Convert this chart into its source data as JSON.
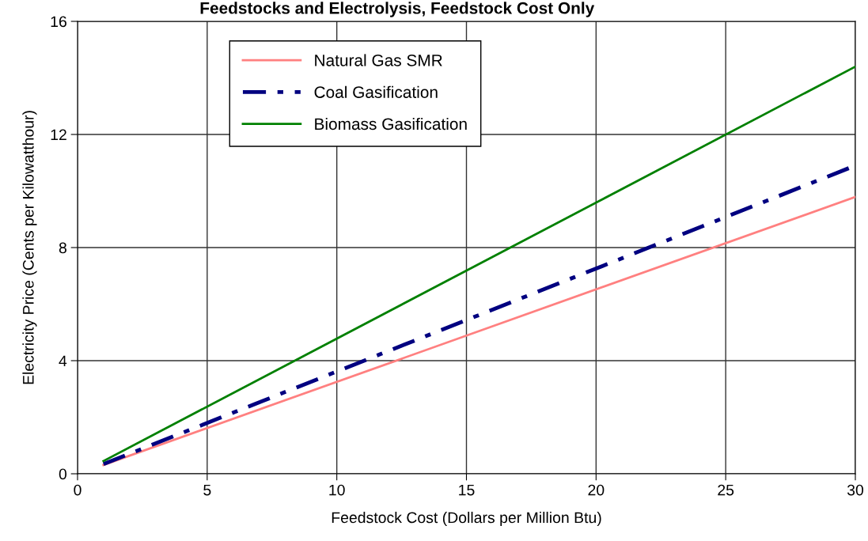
{
  "chart_data": {
    "type": "line",
    "title": "Feedstocks and Electrolysis, Feedstock Cost Only",
    "xlabel": "Feedstock Cost (Dollars per Million Btu)",
    "ylabel": "Electricity Price (Cents per Kilowatthour)",
    "x": [
      1,
      30
    ],
    "series": [
      {
        "name": "Natural Gas SMR",
        "color": "#ff8080",
        "values": [
          0.31,
          9.79
        ],
        "line_style": "solid"
      },
      {
        "name": "Coal Gasification",
        "color": "#000080",
        "values": [
          0.34,
          10.9
        ],
        "line_style": "dashdot"
      },
      {
        "name": "Biomass Gasification",
        "color": "#008000",
        "values": [
          0.45,
          14.4
        ],
        "line_style": "solid"
      }
    ],
    "xlim": [
      0,
      30
    ],
    "xticks": [
      0,
      5,
      10,
      15,
      20,
      25,
      30
    ],
    "ylim": [
      0,
      16
    ],
    "yticks": [
      0,
      4,
      8,
      12,
      16
    ],
    "grid": true,
    "legend": "top left",
    "marker": "none"
  }
}
